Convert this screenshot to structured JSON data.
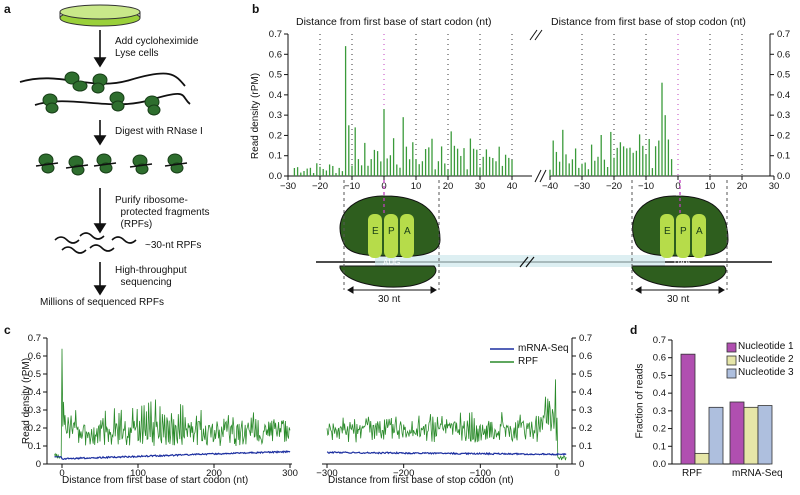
{
  "panel_labels": {
    "a": "a",
    "b": "b",
    "c": "c",
    "d": "d"
  },
  "panel_a": {
    "steps": [
      "Add cycloheximide\nLyse cells",
      "Digest with RNase I",
      "Purify ribosome-\n  protected fragments\n  (RPFs)",
      "High-throughput\n  sequencing"
    ],
    "rpf_label": "~30-nt RPFs",
    "result_label": "Millions of sequenced RPFs"
  },
  "panel_b": {
    "left_header": "Distance from first base of start codon (nt)",
    "right_header": "Distance from first base of stop codon (nt)",
    "ylabel": "Read density (rPM)",
    "yticks": [
      "0.7",
      "0.6",
      "0.5",
      "0.4",
      "0.3",
      "0.2",
      "0.1",
      "0.0"
    ],
    "left_xticks": [
      "−30",
      "−20",
      "−10",
      "0",
      "10",
      "20",
      "30",
      "40"
    ],
    "right_xticks": [
      "−40",
      "−30",
      "−20",
      "−10",
      "0",
      "10",
      "20",
      "30"
    ],
    "sites": [
      "E",
      "P",
      "A"
    ],
    "start_codon": "AUG",
    "stop_codon": "UAA",
    "footprint_label": "30 nt"
  },
  "panel_c": {
    "ylabel": "Read density (rPM)",
    "yticks": [
      "0.7",
      "0.6",
      "0.5",
      "0.4",
      "0.3",
      "0.2",
      "0.1",
      "0"
    ],
    "left_xlabel": "Distance from first base of start codon (nt)",
    "right_xlabel": "Distance from first base of stop codon (nt)",
    "left_xticks": [
      "0",
      "100",
      "200",
      "300"
    ],
    "right_xticks": [
      "−300",
      "−200",
      "−100",
      "0"
    ],
    "legend": [
      {
        "name": "mRNA-Seq",
        "color": "#1c2fa0"
      },
      {
        "name": "RPF",
        "color": "#2a8a2a"
      }
    ]
  },
  "chart_data": {
    "type": "bar",
    "ylabel": "Fraction of reads",
    "categories": [
      "RPF",
      "mRNA-Seq"
    ],
    "series": [
      {
        "name": "Nucleotide 1",
        "color": "#b04fb0",
        "values": [
          0.62,
          0.35
        ]
      },
      {
        "name": "Nucleotide 2",
        "color": "#e6e6a8",
        "values": [
          0.06,
          0.32
        ]
      },
      {
        "name": "Nucleotide 3",
        "color": "#aebfde",
        "values": [
          0.32,
          0.33
        ]
      }
    ],
    "ylim": [
      0,
      0.7
    ],
    "yticks": [
      "0.7",
      "0.6",
      "0.5",
      "0.4",
      "0.3",
      "0.2",
      "0.1",
      "0.0"
    ]
  }
}
